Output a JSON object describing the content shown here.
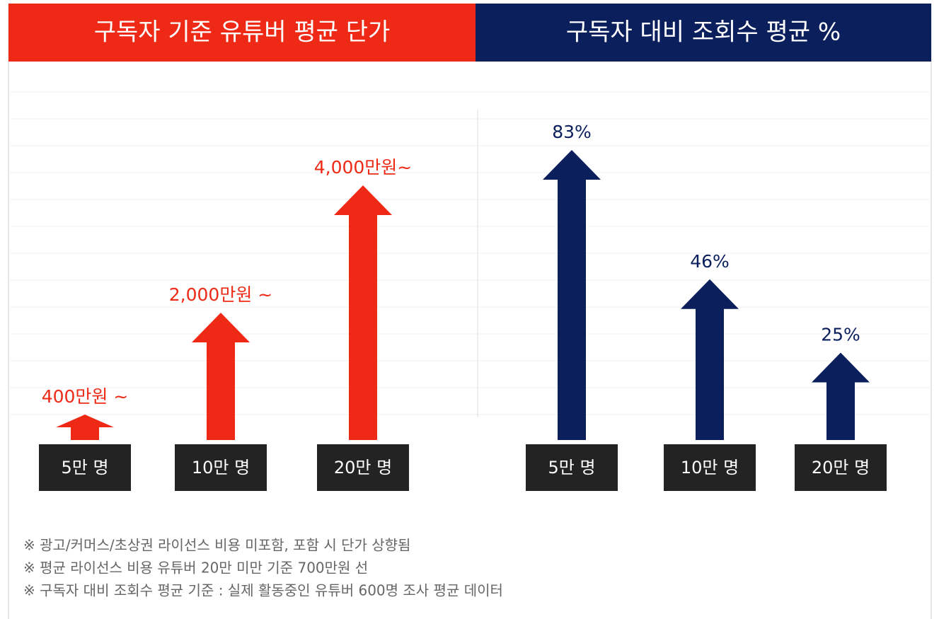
{
  "chart_data": [
    {
      "type": "bar",
      "title": "구독자 기준 유튜버 평균 단가",
      "categories": [
        "5만 명",
        "10만 명",
        "20만 명"
      ],
      "values": [
        400,
        2000,
        4000
      ],
      "value_labels": [
        "400만원 ~",
        "2,000만원 ~",
        "4,000만원~"
      ],
      "color": "#ee2a16",
      "header_color": "#ee2a16"
    },
    {
      "type": "bar",
      "title": "구독자 대비 조회수 평균 %",
      "categories": [
        "5만 명",
        "10만 명",
        "20만 명"
      ],
      "values": [
        83,
        46,
        25
      ],
      "value_labels": [
        "83%",
        "46%",
        "25%"
      ],
      "color": "#0b1f5c",
      "header_color": "#0b1f5c"
    }
  ],
  "notes": [
    "※ 광고/커머스/초상권 라이선스 비용 미포함, 포함 시 단가 상향됨",
    "※ 평균 라이선스 비용 유튜버 20만 미만 기준 700만원 선",
    "※ 구독자 대비 조회수 평균 기준 : 실제 활동중인 유튜버 600명 조사 평균 데이터"
  ]
}
